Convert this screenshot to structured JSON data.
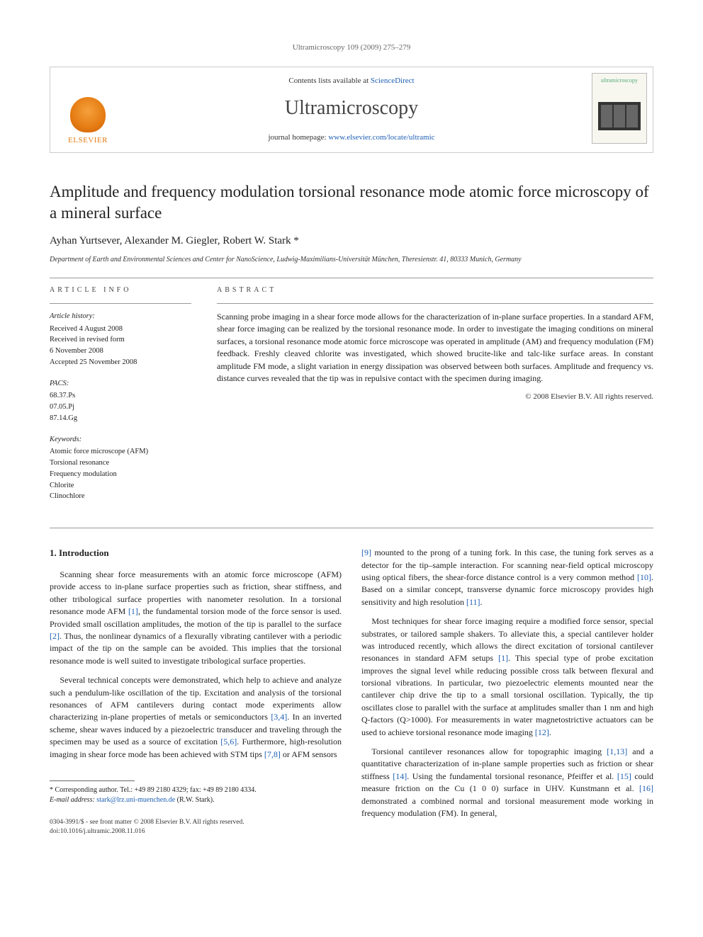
{
  "running_head": "Ultramicroscopy 109 (2009) 275–279",
  "banner": {
    "avail_prefix": "Contents lists available at ",
    "avail_link": "ScienceDirect",
    "journal": "Ultramicroscopy",
    "homepage_prefix": "journal homepage: ",
    "homepage_link": "www.elsevier.com/locate/ultramic",
    "publisher": "ELSEVIER",
    "cover_label": "ultramicroscopy"
  },
  "title": "Amplitude and frequency modulation torsional resonance mode atomic force microscopy of a mineral surface",
  "authors": "Ayhan Yurtsever, Alexander M. Giegler, Robert W. Stark *",
  "affiliation": "Department of Earth and Environmental Sciences and Center for NanoScience, Ludwig-Maximilians-Universität München, Theresienstr. 41, 80333 Munich, Germany",
  "article_info_label": "ARTICLE INFO",
  "abstract_label": "ABSTRACT",
  "history": {
    "label": "Article history:",
    "received": "Received 4 August 2008",
    "revised": "Received in revised form",
    "revised_date": "6 November 2008",
    "accepted": "Accepted 25 November 2008"
  },
  "pacs": {
    "label": "PACS:",
    "p1": "68.37.Ps",
    "p2": "07.05.Pj",
    "p3": "87.14.Gg"
  },
  "keywords": {
    "label": "Keywords:",
    "k1": "Atomic force microscope (AFM)",
    "k2": "Torsional resonance",
    "k3": "Frequency modulation",
    "k4": "Chlorite",
    "k5": "Clinochlore"
  },
  "abstract": "Scanning probe imaging in a shear force mode allows for the characterization of in-plane surface properties. In a standard AFM, shear force imaging can be realized by the torsional resonance mode. In order to investigate the imaging conditions on mineral surfaces, a torsional resonance mode atomic force microscope was operated in amplitude (AM) and frequency modulation (FM) feedback. Freshly cleaved chlorite was investigated, which showed brucite-like and talc-like surface areas. In constant amplitude FM mode, a slight variation in energy dissipation was observed between both surfaces. Amplitude and frequency vs. distance curves revealed that the tip was in repulsive contact with the specimen during imaging.",
  "abstract_copyright": "© 2008 Elsevier B.V. All rights reserved.",
  "section1_heading": "1. Introduction",
  "para1": "Scanning shear force measurements with an atomic force microscope (AFM) provide access to in-plane surface properties such as friction, shear stiffness, and other tribological surface properties with nanometer resolution. In a torsional resonance mode AFM [1], the fundamental torsion mode of the force sensor is used. Provided small oscillation amplitudes, the motion of the tip is parallel to the surface [2]. Thus, the nonlinear dynamics of a flexurally vibrating cantilever with a periodic impact of the tip on the sample can be avoided. This implies that the torsional resonance mode is well suited to investigate tribological surface properties.",
  "para2": "Several technical concepts were demonstrated, which help to achieve and analyze such a pendulum-like oscillation of the tip. Excitation and analysis of the torsional resonances of AFM cantilevers during contact mode experiments allow characterizing in-plane properties of metals or semiconductors [3,4]. In an inverted scheme, shear waves induced by a piezoelectric transducer and traveling through the specimen may be used as a source of excitation [5,6]. Furthermore, high-resolution imaging in shear force mode has been achieved with STM tips [7,8] or AFM sensors",
  "para3": "[9] mounted to the prong of a tuning fork. In this case, the tuning fork serves as a detector for the tip–sample interaction. For scanning near-field optical microscopy using optical fibers, the shear-force distance control is a very common method [10]. Based on a similar concept, transverse dynamic force microscopy provides high sensitivity and high resolution [11].",
  "para4": "Most techniques for shear force imaging require a modified force sensor, special substrates, or tailored sample shakers. To alleviate this, a special cantilever holder was introduced recently, which allows the direct excitation of torsional cantilever resonances in standard AFM setups [1]. This special type of probe excitation improves the signal level while reducing possible cross talk between flexural and torsional vibrations. In particular, two piezoelectric elements mounted near the cantilever chip drive the tip to a small torsional oscillation. Typically, the tip oscillates close to parallel with the surface at amplitudes smaller than 1 nm and high Q-factors (Q>1000). For measurements in water magnetostrictive actuators can be used to achieve torsional resonance mode imaging [12].",
  "para5": "Torsional cantilever resonances allow for topographic imaging [1,13] and a quantitative characterization of in-plane sample properties such as friction or shear stiffness [14]. Using the fundamental torsional resonance, Pfeiffer et al. [15] could measure friction on the Cu (1 0 0) surface in UHV. Kunstmann et al. [16] demonstrated a combined normal and torsional measurement mode working in frequency modulation (FM). In general,",
  "footnote": {
    "corr": "* Corresponding author. Tel.: +49 89 2180 4329; fax: +49 89 2180 4334.",
    "email_label": "E-mail address: ",
    "email": "stark@lrz.uni-muenchen.de",
    "email_who": " (R.W. Stark)."
  },
  "bottom": {
    "issn": "0304-3991/$ - see front matter © 2008 Elsevier B.V. All rights reserved.",
    "doi": "doi:10.1016/j.ultramic.2008.11.016"
  },
  "colors": {
    "link": "#1e5fb3",
    "elsevier_orange": "#e57b12",
    "text": "#222222",
    "rule": "#999999"
  }
}
